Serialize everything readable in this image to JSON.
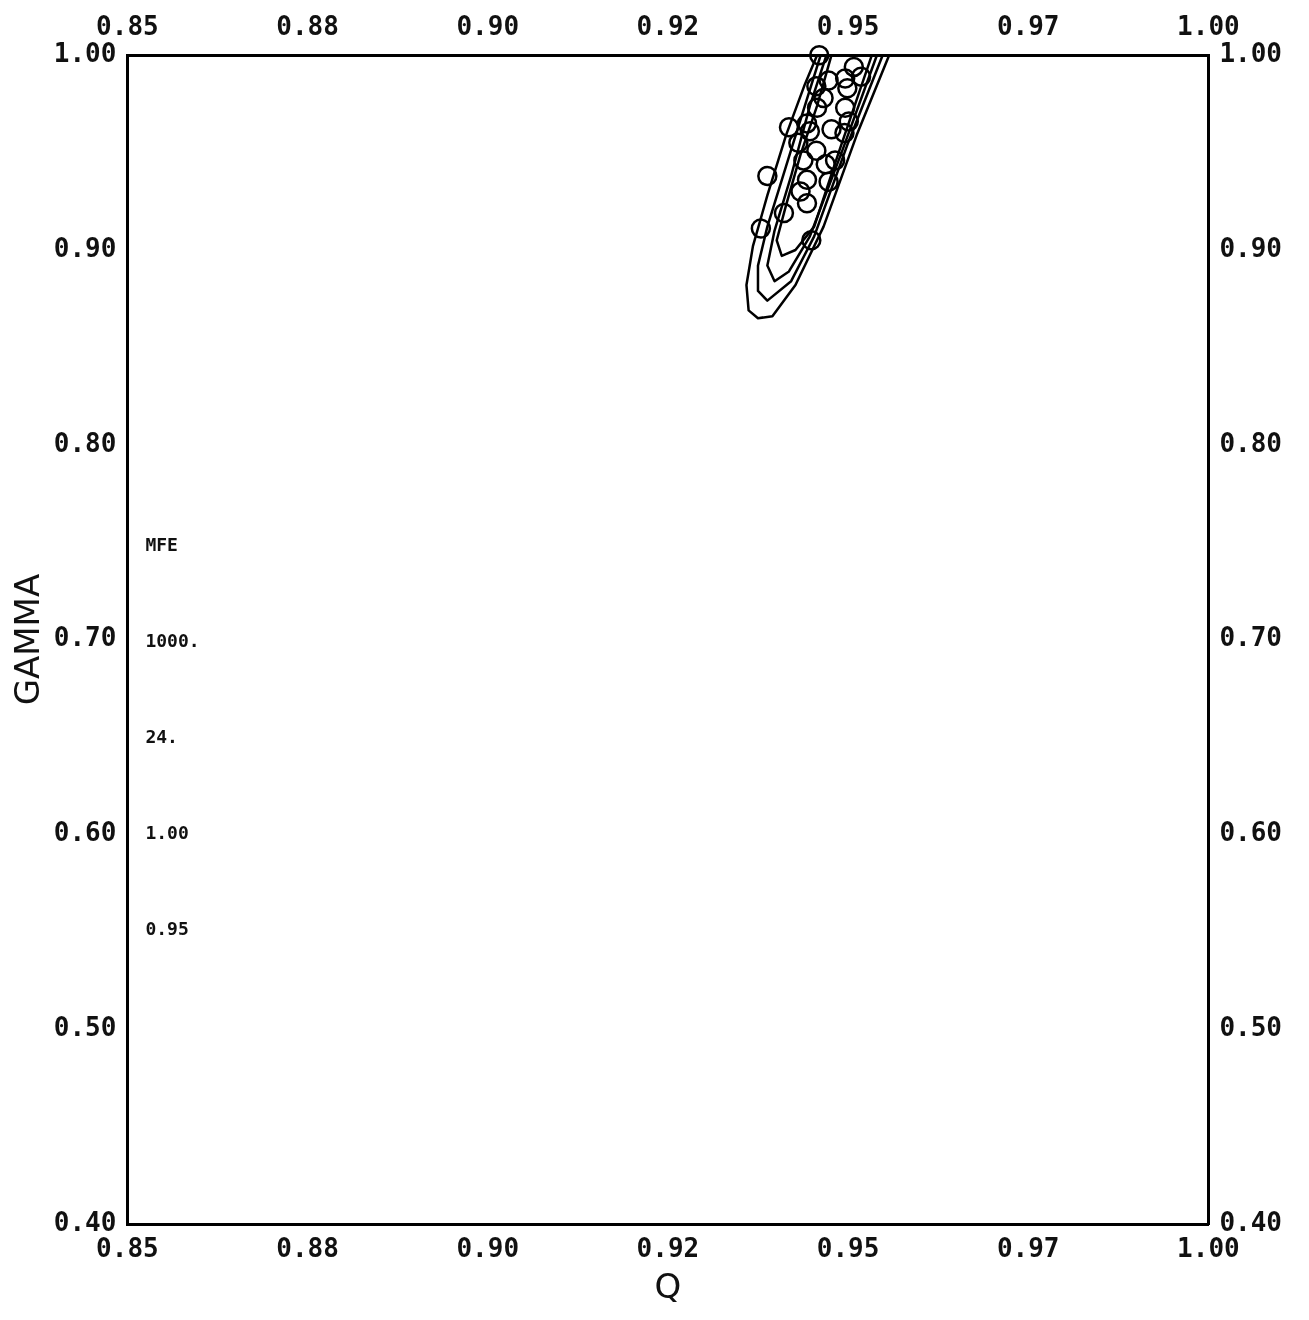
{
  "chart_data": {
    "type": "scatter",
    "xlabel": "Q",
    "ylabel": "GAMMA",
    "xlim": [
      0.85,
      1.0
    ],
    "xticks": [
      0.85,
      {
        "value": 0.875,
        "label": "0.88"
      },
      {
        "value": 0.9,
        "label": "0.90"
      },
      {
        "value": 0.925,
        "label": "0.92"
      },
      0.95,
      {
        "value": 0.975,
        "label": "0.97"
      },
      {
        "value": 1.0,
        "label": "1.00"
      }
    ],
    "x2lim": [
      0.85,
      1.0
    ],
    "x2ticks": [
      0.85,
      {
        "value": 0.875,
        "label": "0.88"
      },
      {
        "value": 0.9,
        "label": "0.90"
      },
      {
        "value": 0.925,
        "label": "0.92"
      },
      0.95,
      {
        "value": 0.975,
        "label": "0.97"
      },
      {
        "value": 1.0,
        "label": "1.00"
      }
    ],
    "ylim": [
      0.4,
      1.0
    ],
    "yticks": [
      {
        "value": 0.4,
        "label": "0.40"
      },
      {
        "value": 0.5,
        "label": "0.50"
      },
      {
        "value": 0.6,
        "label": "0.60"
      },
      {
        "value": 0.7,
        "label": "0.70"
      },
      {
        "value": 0.8,
        "label": "0.80"
      },
      {
        "value": 0.9,
        "label": "0.90"
      },
      {
        "value": 1.0,
        "label": "1.00"
      }
    ],
    "y2lim": [
      0.4,
      1.0
    ],
    "y2ticks": [
      {
        "value": 0.4,
        "label": "0.40"
      },
      {
        "value": 0.5,
        "label": "0.50"
      },
      {
        "value": 0.6,
        "label": "0.60"
      },
      {
        "value": 0.7,
        "label": "0.70"
      },
      {
        "value": 0.8,
        "label": "0.80"
      },
      {
        "value": 0.9,
        "label": "0.90"
      },
      {
        "value": 1.0,
        "label": "1.00"
      }
    ],
    "grid": false,
    "legend": false,
    "annotations": [
      "MFE",
      "1000.",
      "24.",
      "1.00",
      "0.95"
    ],
    "series": [
      {
        "color": "#000000",
        "marker": "circle",
        "x": [
          0.946,
          0.9473,
          0.9496,
          0.9518,
          0.9499,
          0.9456,
          0.9466,
          0.9457,
          0.9496,
          0.9501,
          0.9495,
          0.9477,
          0.9418,
          0.9443,
          0.9447,
          0.9431,
          0.9438,
          0.9456,
          0.9469,
          0.9482,
          0.9473,
          0.9443,
          0.9434,
          0.9443,
          0.9411,
          0.9388,
          0.9379,
          0.9449,
          0.9508
        ],
        "values": [
          1.0,
          0.987,
          0.988,
          0.989,
          0.983,
          0.984,
          0.978,
          0.973,
          0.973,
          0.966,
          0.96,
          0.962,
          0.963,
          0.965,
          0.961,
          0.955,
          0.946,
          0.951,
          0.944,
          0.946,
          0.935,
          0.936,
          0.93,
          0.924,
          0.919,
          0.938,
          0.911,
          0.905,
          0.994
        ]
      },
      {
        "type": "line",
        "color": "#000000",
        "marker": "none",
        "x": [
          0.9557,
          0.9512,
          0.9466,
          0.9427,
          0.9395,
          0.9375,
          0.9362,
          0.9359,
          0.9368,
          0.9388,
          0.9414,
          0.944,
          0.9457
        ],
        "values": [
          1.0,
          0.959,
          0.912,
          0.882,
          0.866,
          0.865,
          0.869,
          0.882,
          0.902,
          0.928,
          0.959,
          0.985,
          1.0
        ]
      },
      {
        "type": "line",
        "color": "#000000",
        "marker": "none",
        "x": [
          0.9548,
          0.9499,
          0.9453,
          0.9421,
          0.9388,
          0.9375,
          0.9375,
          0.9388,
          0.9414,
          0.944,
          0.9462
        ],
        "values": [
          1.0,
          0.954,
          0.907,
          0.884,
          0.874,
          0.879,
          0.892,
          0.912,
          0.943,
          0.974,
          1.0
        ]
      },
      {
        "type": "line",
        "color": "#000000",
        "marker": "none",
        "x": [
          0.954,
          0.9492,
          0.9447,
          0.9418,
          0.9398,
          0.9388,
          0.9398,
          0.9421,
          0.9447,
          0.947
        ],
        "values": [
          1.0,
          0.951,
          0.907,
          0.889,
          0.884,
          0.892,
          0.91,
          0.938,
          0.974,
          1.0
        ]
      },
      {
        "type": "line",
        "color": "#000000",
        "marker": "none",
        "x": [
          0.9533,
          0.9486,
          0.9453,
          0.9427,
          0.9408,
          0.9401,
          0.9414,
          0.9434,
          0.9457,
          0.9477
        ],
        "values": [
          1.0,
          0.949,
          0.912,
          0.9,
          0.897,
          0.905,
          0.923,
          0.949,
          0.974,
          1.0
        ]
      }
    ]
  }
}
